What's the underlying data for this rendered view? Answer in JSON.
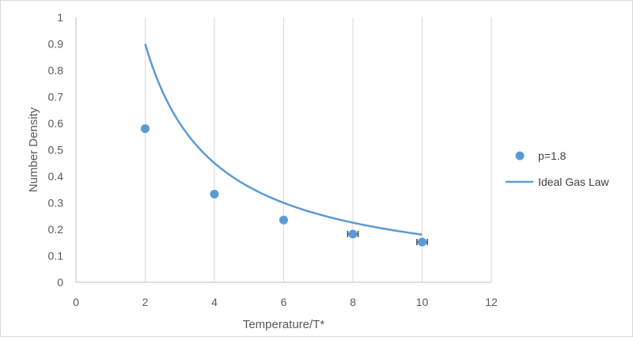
{
  "chart_data": {
    "type": "scatter",
    "xlabel": "Temperature/T*",
    "ylabel": "Number Density",
    "xlim": [
      0,
      12
    ],
    "ylim": [
      0,
      1
    ],
    "x_ticks": [
      "0",
      "2",
      "4",
      "6",
      "8",
      "10",
      "12"
    ],
    "y_ticks": [
      "0",
      "0.1",
      "0.2",
      "0.3",
      "0.4",
      "0.5",
      "0.6",
      "0.7",
      "0.8",
      "0.9",
      "1"
    ],
    "grid": "vertical",
    "legend_position": "right",
    "series": [
      {
        "name": "p=1.8",
        "kind": "scatter",
        "color": "#5b9bd5",
        "x": [
          2,
          4,
          6,
          8,
          10
        ],
        "y": [
          0.58,
          0.333,
          0.235,
          0.182,
          0.152
        ],
        "error_x": [
          0,
          0,
          0,
          0.15,
          0.15
        ]
      },
      {
        "name": "Ideal Gas Law",
        "kind": "line",
        "color": "#5b9bd5",
        "formula": "1.8 / T",
        "x_range": [
          2,
          10
        ]
      }
    ]
  }
}
